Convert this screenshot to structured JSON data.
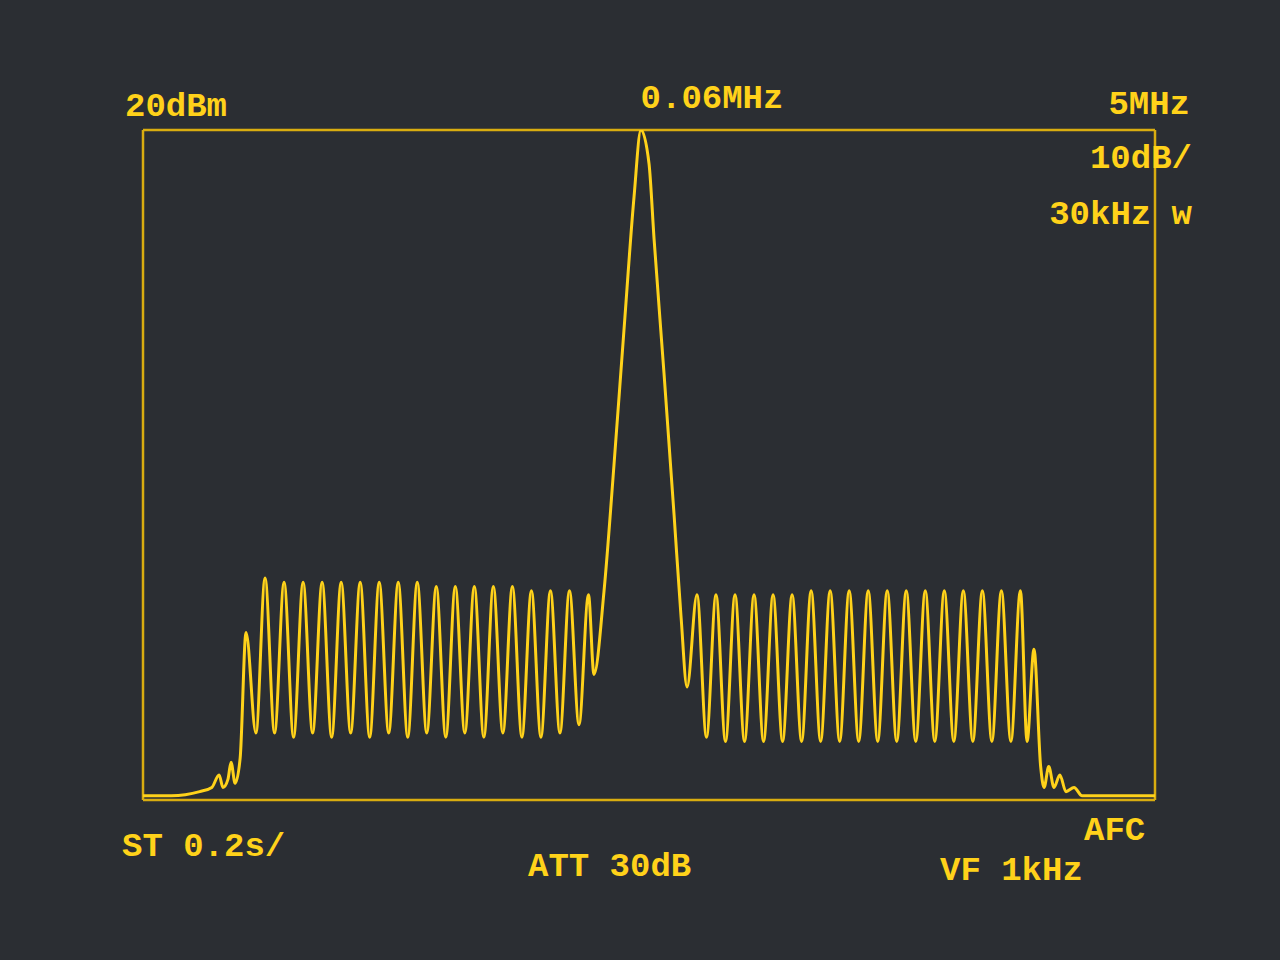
{
  "chart_data": {
    "type": "line",
    "color": "#ffd21a",
    "grid": true,
    "tick_labels": false,
    "annotations": [
      "20dBm",
      "0.06MHz",
      "5MHz",
      "10dB/",
      "30kHz w",
      "ST 0.2s/",
      "ATT 30dB",
      "VF 1kHz",
      "AFC"
    ],
    "xlim": [
      -2.44,
      2.56
    ],
    "xticks": [
      -2.44,
      -1.94,
      -1.44,
      -0.94,
      -0.44,
      0.06,
      0.56,
      1.06,
      1.56,
      2.06,
      2.56
    ],
    "ylim": [
      -60,
      20
    ],
    "yticks": [
      -60,
      -50,
      -40,
      -30,
      -20,
      -10,
      0,
      10,
      20
    ],
    "x": [
      -2.44,
      -2.3,
      -2.16,
      -2.1,
      -2.064,
      -2.045,
      -2.02,
      -2.005,
      -1.985,
      -1.96,
      -1.931,
      -1.882,
      -1.837,
      -1.79,
      -1.743,
      -1.696,
      -1.649,
      -1.602,
      -1.555,
      -1.508,
      -1.461,
      -1.414,
      -1.367,
      -1.32,
      -1.273,
      -1.226,
      -1.179,
      -1.132,
      -1.085,
      -1.038,
      -0.991,
      -0.944,
      -0.897,
      -0.85,
      -0.803,
      -0.756,
      -0.709,
      -0.662,
      -0.615,
      -0.568,
      -0.521,
      -0.474,
      -0.427,
      -0.38,
      -0.333,
      -0.286,
      -0.239,
      -0.212,
      -0.162,
      -0.113,
      -0.064,
      -0.014,
      0.02,
      0.06,
      0.085,
      0.134,
      0.184,
      0.218,
      0.248,
      0.297,
      0.344,
      0.391,
      0.438,
      0.485,
      0.532,
      0.579,
      0.626,
      0.673,
      0.72,
      0.767,
      0.814,
      0.861,
      0.908,
      0.955,
      1.002,
      1.049,
      1.096,
      1.143,
      1.19,
      1.237,
      1.284,
      1.331,
      1.378,
      1.425,
      1.472,
      1.519,
      1.566,
      1.613,
      1.66,
      1.707,
      1.754,
      1.801,
      1.848,
      1.895,
      1.928,
      1.962,
      1.995,
      2.012,
      2.035,
      2.061,
      2.09,
      2.12,
      2.16,
      2.2,
      2.56
    ],
    "values": [
      -59.5,
      -59.5,
      -59,
      -58.5,
      -57,
      -58.5,
      -57.5,
      -55.5,
      -58,
      -55,
      -40,
      -52,
      -33.5,
      -52,
      -34,
      -52.5,
      -34,
      -52,
      -34,
      -52.5,
      -34,
      -52,
      -34,
      -52.5,
      -34,
      -52,
      -34,
      -52.5,
      -34,
      -52,
      -34.5,
      -52.5,
      -34.5,
      -52,
      -34.5,
      -52.5,
      -34.5,
      -52,
      -34.5,
      -52.5,
      -35,
      -52.5,
      -35,
      -52,
      -35,
      -51,
      -35.5,
      -45,
      -35,
      -20,
      -4,
      12,
      20,
      16,
      7,
      -9,
      -26,
      -38,
      -46.5,
      -35.5,
      -52.5,
      -35.5,
      -53,
      -35.5,
      -53,
      -35.5,
      -53,
      -35.5,
      -53,
      -35.5,
      -53,
      -35,
      -53,
      -35,
      -53,
      -35,
      -53,
      -35,
      -53,
      -35,
      -53,
      -35,
      -53,
      -35,
      -53,
      -35,
      -53,
      -35,
      -53,
      -35,
      -53,
      -35,
      -53,
      -35,
      -53,
      -42,
      -56,
      -58.5,
      -56,
      -58.5,
      -57,
      -59,
      -58.5,
      -59.5,
      -59.5
    ]
  }
}
